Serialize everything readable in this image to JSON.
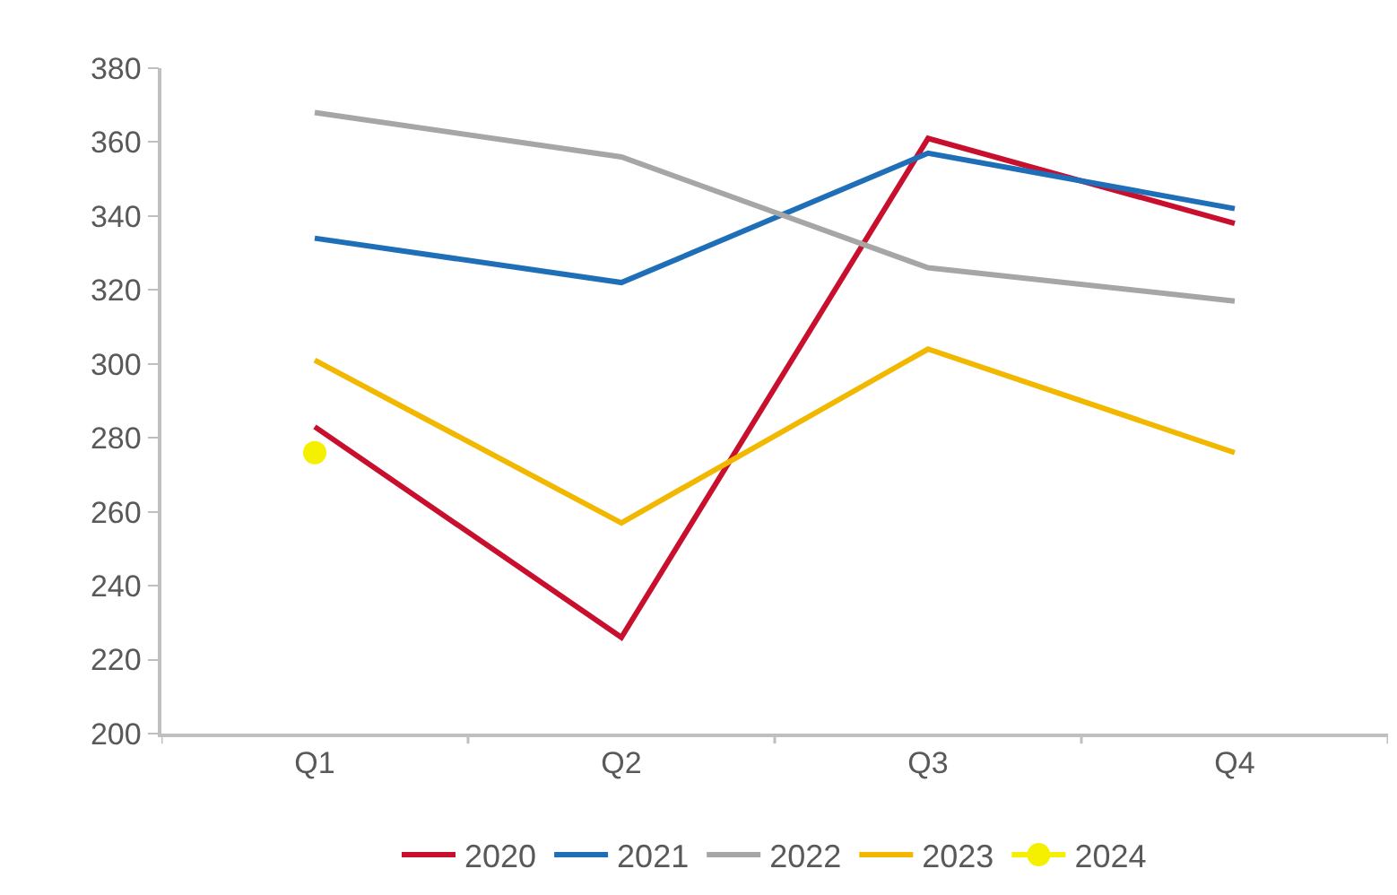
{
  "chart_data": {
    "type": "line",
    "categories": [
      "Q1",
      "Q2",
      "Q3",
      "Q4"
    ],
    "series": [
      {
        "name": "2020",
        "color": "#c8102e",
        "values": [
          283,
          226,
          361,
          338
        ]
      },
      {
        "name": "2021",
        "color": "#1f6fb8",
        "values": [
          334,
          322,
          357,
          342
        ]
      },
      {
        "name": "2022",
        "color": "#a6a6a6",
        "values": [
          368,
          356,
          326,
          317
        ]
      },
      {
        "name": "2023",
        "color": "#f2b800",
        "values": [
          301,
          257,
          304,
          276
        ]
      },
      {
        "name": "2024",
        "color": "#f5f000",
        "marker": "circle",
        "values": [
          276,
          null,
          null,
          null
        ]
      }
    ],
    "ylim": [
      200,
      380
    ],
    "yticks": [
      200,
      220,
      240,
      260,
      280,
      300,
      320,
      340,
      360,
      380
    ],
    "grid": false,
    "legend": "bottom",
    "marker": "none",
    "line_style": "solid"
  }
}
